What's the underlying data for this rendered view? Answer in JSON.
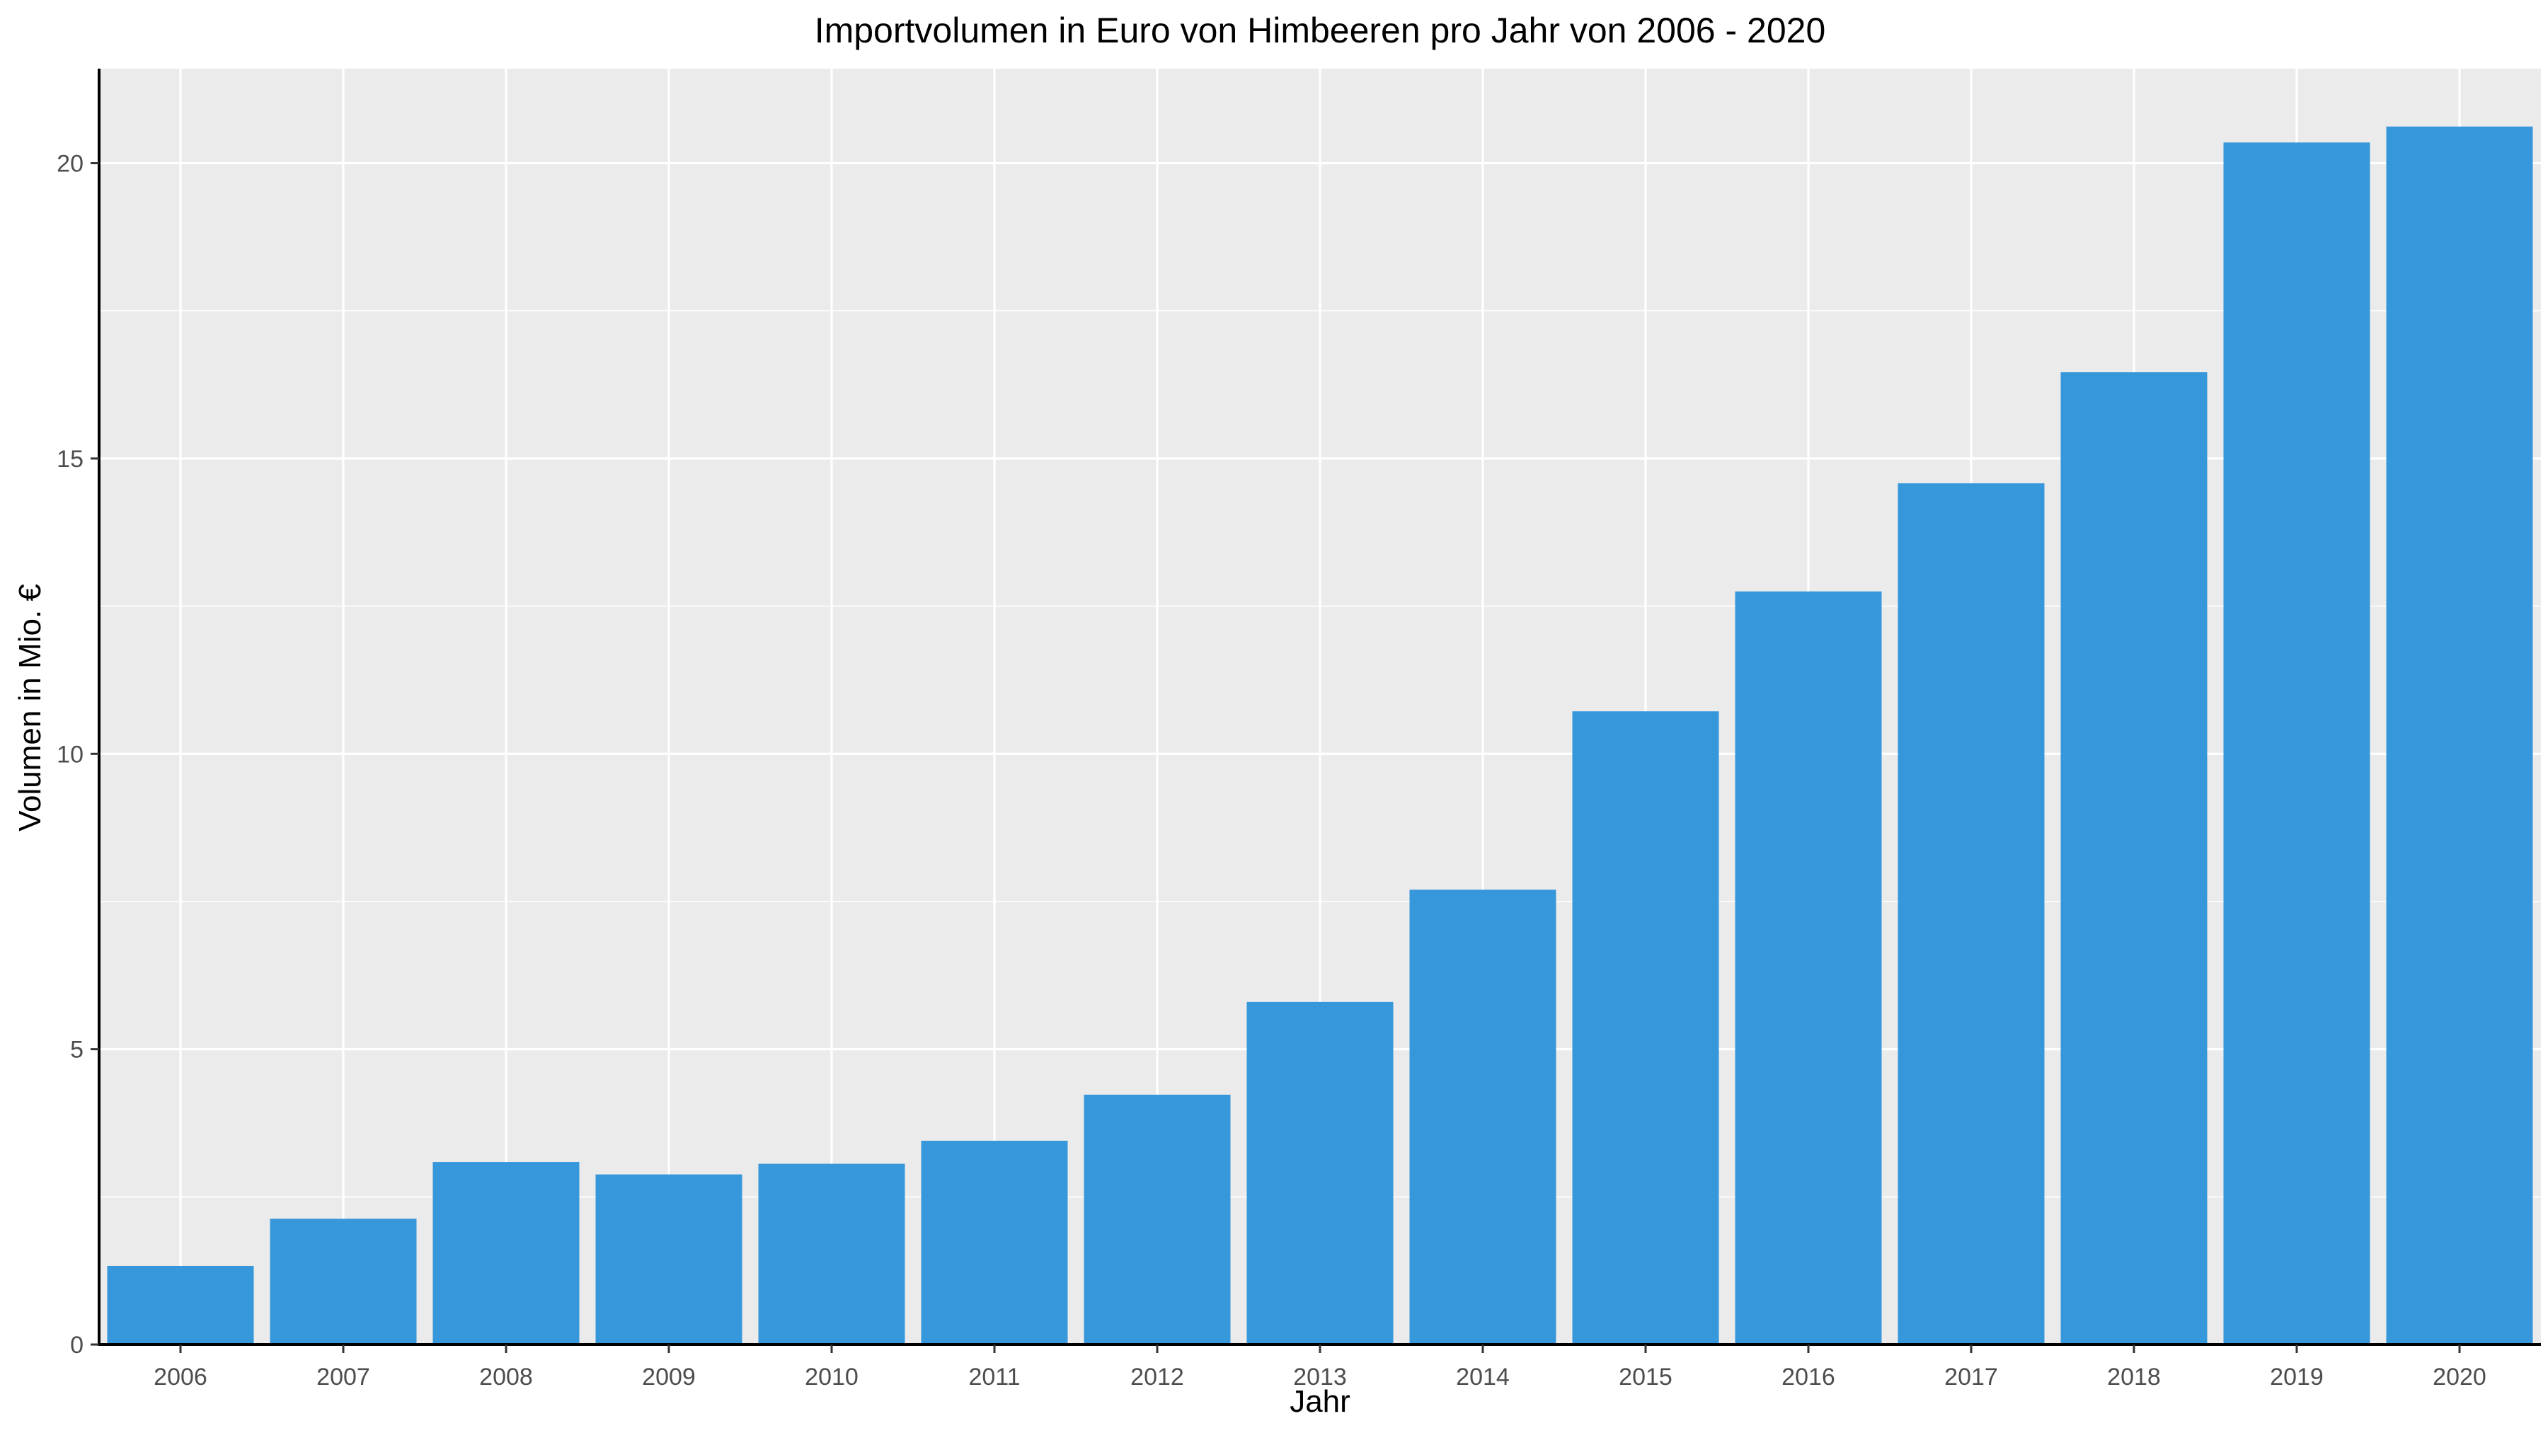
{
  "chart_data": {
    "type": "bar",
    "title": "Importvolumen in Euro von Himbeeren pro Jahr von 2006 - 2020",
    "xlabel": "Jahr",
    "ylabel": "Volumen in Mio. €",
    "categories": [
      "2006",
      "2007",
      "2008",
      "2009",
      "2010",
      "2011",
      "2012",
      "2013",
      "2014",
      "2015",
      "2016",
      "2017",
      "2018",
      "2019",
      "2020"
    ],
    "values": [
      1.33,
      2.13,
      3.09,
      2.88,
      3.06,
      3.45,
      4.23,
      5.8,
      7.7,
      10.72,
      12.75,
      14.58,
      16.46,
      20.35,
      20.62
    ],
    "ylim": [
      0,
      21.6
    ],
    "yticks": [
      0,
      5,
      10,
      15,
      20
    ],
    "grid": true,
    "bar_color": "#3797DB",
    "panel_background": "#EBEBEB",
    "grid_color": "#FFFFFF"
  }
}
